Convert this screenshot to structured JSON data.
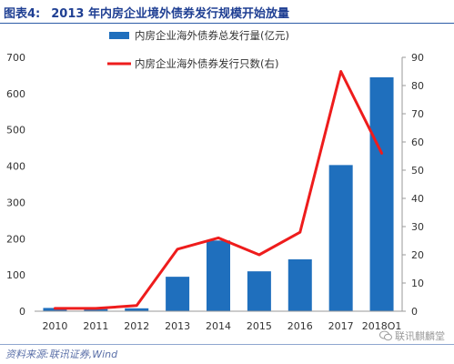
{
  "figure_label": "图表4:",
  "source_text": "资料来源:联讯证券,Wind",
  "watermark_text": "联讯麒麟堂",
  "colors": {
    "bar": "#1f6fbd",
    "line": "#ee1c1c",
    "title": "#1f3f93",
    "axis_text": "#333333"
  },
  "chart_data": {
    "type": "bar+line",
    "title": "2013 年内房企业境外债券发行规模开始放量",
    "categories": [
      "2010",
      "2011",
      "2012",
      "2013",
      "2014",
      "2015",
      "2016",
      "2017",
      "2018Q1"
    ],
    "series": [
      {
        "name": "内房企业海外债券总发行量(亿元)",
        "type": "bar",
        "axis": "left",
        "values": [
          9,
          6,
          8,
          95,
          195,
          110,
          143,
          403,
          645
        ]
      },
      {
        "name": "内房企业海外债券发行只数(右)",
        "type": "line",
        "axis": "right",
        "values": [
          1,
          1,
          2,
          22,
          26,
          20,
          28,
          85,
          56
        ]
      }
    ],
    "y_left": {
      "min": 0,
      "max": 700,
      "ticks": [
        0,
        100,
        200,
        300,
        400,
        500,
        600,
        700
      ]
    },
    "y_right": {
      "min": 0,
      "max": 90,
      "ticks": [
        0,
        10,
        20,
        30,
        40,
        50,
        60,
        70,
        80,
        90
      ]
    },
    "legend_position": "top-center",
    "grid": false
  }
}
